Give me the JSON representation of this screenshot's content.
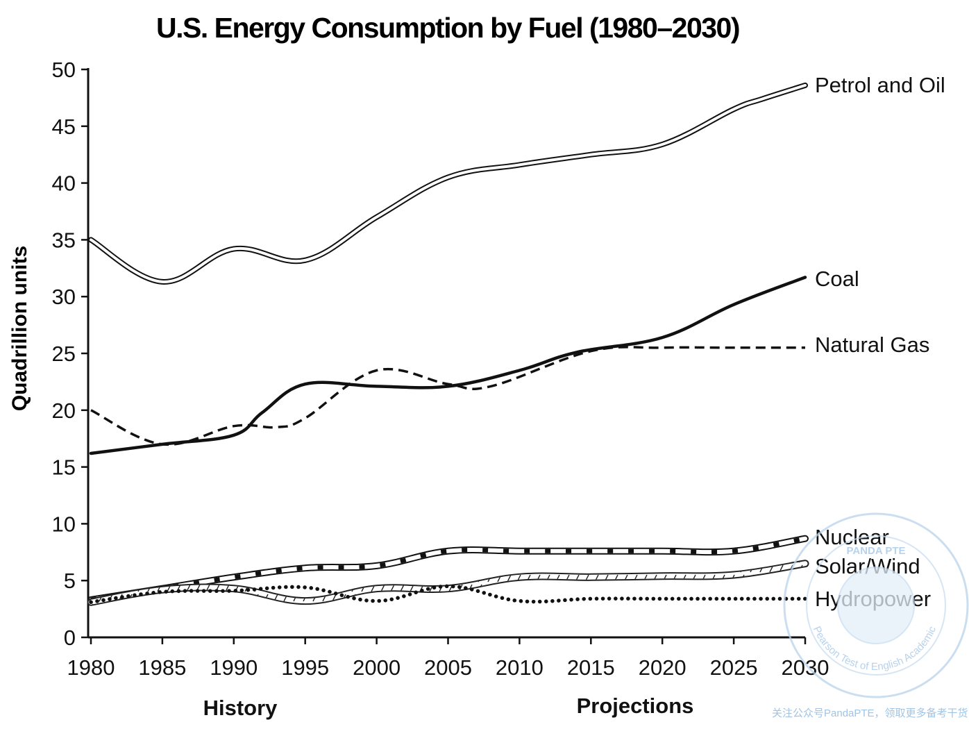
{
  "chart_data": {
    "type": "line",
    "title": "U.S. Energy Consumption by Fuel (1980–2030)",
    "ylabel": "Quadrillion units",
    "xlabel": "",
    "xlim": [
      1980,
      2030
    ],
    "ylim": [
      0,
      50
    ],
    "x_ticks": [
      "1980",
      "1985",
      "1990",
      "1995",
      "2000",
      "2005",
      "2010",
      "2015",
      "2020",
      "2025",
      "2030"
    ],
    "y_ticks": [
      "0",
      "5",
      "10",
      "15",
      "20",
      "25",
      "30",
      "35",
      "40",
      "45",
      "50"
    ],
    "grid": false,
    "legend": "line-end labels on the right",
    "sections": [
      {
        "label": "History",
        "x": 1991
      },
      {
        "label": "Projections",
        "x": 2014
      }
    ],
    "series": [
      {
        "name": "Petrol and Oil",
        "style": "double",
        "x": [
          1980,
          1985,
          1990,
          1995,
          2000,
          2005,
          2010,
          2015,
          2020,
          2025,
          2027,
          2030
        ],
        "y": [
          35,
          31.3,
          34.2,
          33.2,
          37,
          40.5,
          41.6,
          42.5,
          43.4,
          46.5,
          47.4,
          48.6
        ]
      },
      {
        "name": "Coal",
        "style": "solid",
        "x": [
          1980,
          1985,
          1990,
          1992,
          1995,
          2000,
          2005,
          2010,
          2014,
          2020,
          2025,
          2030
        ],
        "y": [
          16.2,
          17,
          17.8,
          19.8,
          22.3,
          22.1,
          22.1,
          23.5,
          25.1,
          26.4,
          29.3,
          31.7
        ]
      },
      {
        "name": "Natural Gas",
        "style": "dashed",
        "x": [
          1980,
          1985,
          1990,
          1993,
          1995,
          2000,
          2005,
          2008,
          2015,
          2020,
          2025,
          2030
        ],
        "y": [
          20,
          17,
          18.6,
          18.5,
          19.3,
          23.5,
          22.3,
          22.1,
          25.2,
          25.5,
          25.5,
          25.5
        ]
      },
      {
        "name": "Nuclear",
        "style": "double-dotted",
        "x": [
          1980,
          1985,
          1990,
          1995,
          2000,
          2005,
          2010,
          2015,
          2020,
          2025,
          2030
        ],
        "y": [
          3.3,
          4.3,
          5.3,
          6.1,
          6.3,
          7.6,
          7.6,
          7.6,
          7.6,
          7.6,
          8.7
        ]
      },
      {
        "name": "Solar/Wind",
        "style": "double-hatched",
        "x": [
          1980,
          1985,
          1990,
          1995,
          2000,
          2005,
          2010,
          2015,
          2020,
          2025,
          2030
        ],
        "y": [
          3.1,
          4.2,
          4.3,
          3.2,
          4.3,
          4.3,
          5.3,
          5.3,
          5.4,
          5.5,
          6.5
        ]
      },
      {
        "name": "Hydropower",
        "style": "dotted",
        "x": [
          1980,
          1985,
          1990,
          1995,
          2000,
          2005,
          2010,
          2015,
          2020,
          2025,
          2030
        ],
        "y": [
          3.1,
          4.0,
          4.1,
          4.4,
          3.2,
          4.5,
          3.2,
          3.4,
          3.4,
          3.4,
          3.4
        ]
      }
    ]
  },
  "watermark": {
    "ring_text": "Pearson Test of English Academic",
    "top_text": "PANDA PTE",
    "footer": "关注公众号PandaPTE，领取更多备考干货"
  }
}
